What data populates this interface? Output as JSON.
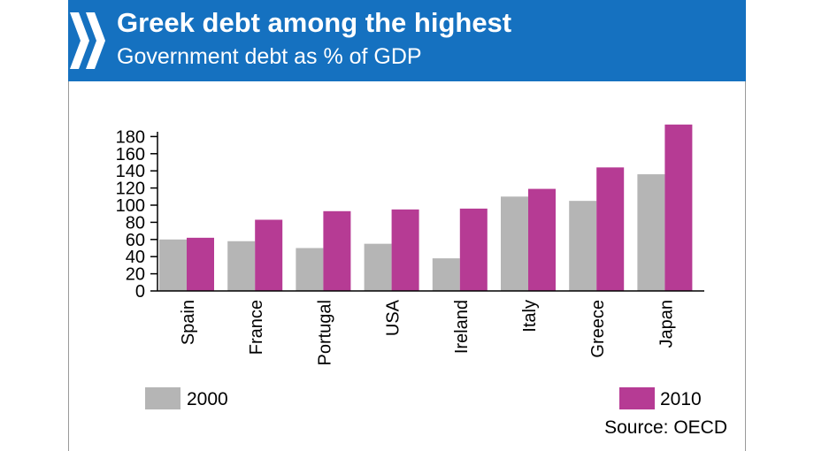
{
  "header": {
    "title": "Greek debt among the highest",
    "subtitle": "Government debt as % of GDP",
    "logo_icon": "double-chevron-icon",
    "header_color": "#1571c0"
  },
  "source": "Source: OECD",
  "chart_data": {
    "type": "bar",
    "title": "Greek debt among the highest",
    "subtitle": "Government debt as % of GDP",
    "categories": [
      "Spain",
      "France",
      "Portugal",
      "USA",
      "Ireland",
      "Italy",
      "Greece",
      "Japan"
    ],
    "series": [
      {
        "name": "2000",
        "color": "#b5b5b5",
        "values": [
          60,
          58,
          50,
          55,
          38,
          110,
          105,
          136
        ]
      },
      {
        "name": "2010",
        "color": "#b63b94",
        "values": [
          62,
          83,
          93,
          95,
          96,
          119,
          144,
          194
        ]
      }
    ],
    "y_ticks": [
      0,
      20,
      40,
      60,
      80,
      100,
      120,
      140,
      160,
      180
    ],
    "ylim": [
      0,
      200
    ],
    "xlabel": "",
    "ylabel": "",
    "grid": false,
    "legend_position": "bottom"
  }
}
